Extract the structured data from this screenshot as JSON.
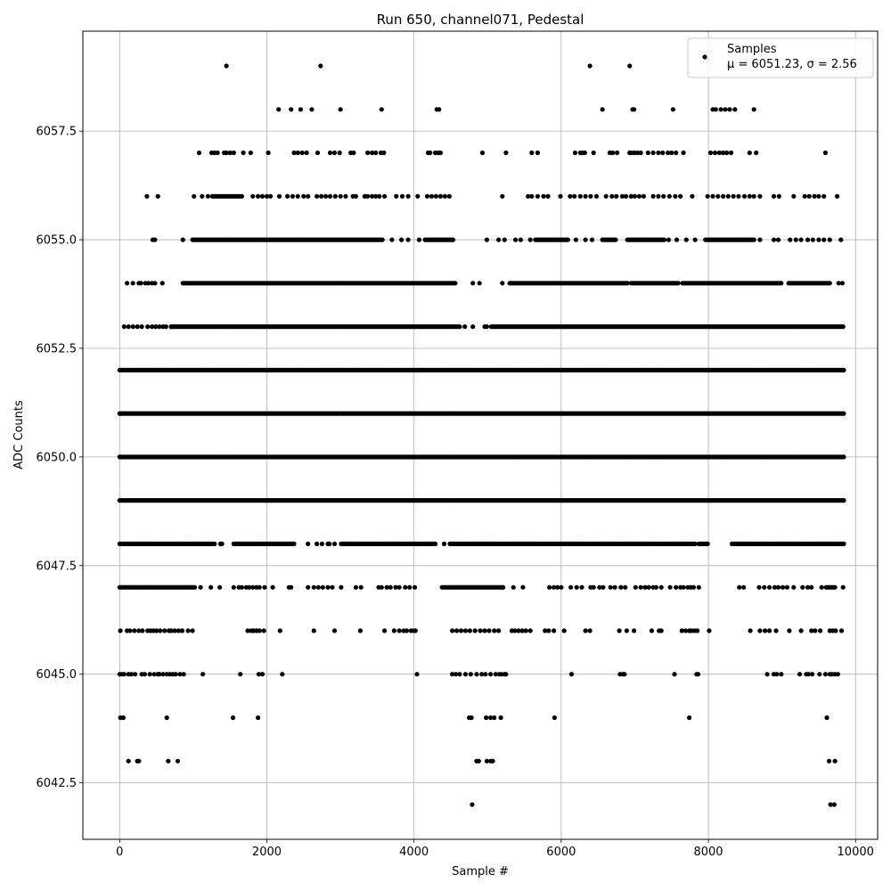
{
  "chart_data": {
    "type": "scatter",
    "title": "Run 650, channel071, Pedestal",
    "xlabel": "Sample #",
    "ylabel": "ADC Counts",
    "xlim": [
      -500,
      10300
    ],
    "ylim": [
      6041.2,
      6059.8
    ],
    "x_ticks": [
      0,
      2000,
      4000,
      6000,
      8000,
      10000
    ],
    "x_tick_labels": [
      "0",
      "2000",
      "4000",
      "6000",
      "8000",
      "10000"
    ],
    "y_ticks": [
      6042.5,
      6045.0,
      6047.5,
      6050.0,
      6052.5,
      6055.0,
      6057.5
    ],
    "y_tick_labels": [
      "6042.5",
      "6045.0",
      "6047.5",
      "6050.0",
      "6052.5",
      "6055.0",
      "6057.5"
    ],
    "grid": true,
    "legend": {
      "placement": "top-right",
      "series_label": "Samples",
      "stats_label": "μ = 6051.23, σ = 2.56"
    },
    "series": [
      {
        "name": "Samples",
        "color": "#000000",
        "level_ranges": [
          {
            "y": 6059,
            "x": [
              1450,
              2730,
              6390,
              6930,
              8280
            ]
          },
          {
            "y": 6058,
            "x": [
              2160,
              2330,
              2460,
              2610,
              3000,
              3560,
              4310,
              4340,
              6560,
              6970,
              6990,
              7520,
              8060,
              8100,
              8170,
              8230,
              8290,
              8360,
              8620
            ]
          },
          {
            "y": 6057,
            "x": [
              1080,
              1250,
              1290,
              1330,
              1420,
              1450,
              1500,
              1550,
              1680,
              1780,
              2020,
              2370,
              2420,
              2480,
              2540,
              2690,
              2860,
              2920,
              2990,
              3140,
              3180,
              3370,
              3430,
              3480,
              3550,
              3590,
              4190,
              4220,
              4290,
              4330,
              4360,
              4930,
              5250,
              5600,
              5680,
              6190,
              6260,
              6290,
              6320,
              6440,
              6660,
              6700,
              6760,
              6930,
              6960,
              7000,
              7040,
              7080,
              7180,
              7250,
              7320,
              7380,
              7450,
              7500,
              7560,
              7660,
              8030,
              8090,
              8150,
              8200,
              8250,
              8310,
              8560,
              8650,
              9590
            ]
          },
          {
            "y": 6056,
            "x": [
              370,
              520,
              1010,
              1120,
              1200
            ],
            "range": [
              1260,
              1660
            ],
            "x2": [
              1810,
              1880,
              1940,
              2000,
              2050,
              2170,
              2280,
              2350,
              2420,
              2500,
              2560,
              2680,
              2740,
              2800,
              2860,
              2930,
              3000,
              3070,
              3170,
              3210,
              3330,
              3370,
              3430,
              3480,
              3530,
              3600,
              3760,
              3840,
              3920,
              4050,
              4180,
              4240,
              4300,
              4360,
              4420,
              4480,
              5200,
              5550,
              5600,
              5680,
              5760,
              5820,
              5990,
              6120,
              6180,
              6260,
              6330,
              6400,
              6480,
              6610,
              6690,
              6750,
              6830,
              6880,
              6950,
              7000,
              7060,
              7120,
              7250,
              7320,
              7390,
              7470,
              7550,
              7620,
              7780,
              7990,
              8060,
              8130,
              8200,
              8270,
              8340,
              8410,
              8490,
              8560,
              8620,
              8700,
              8890,
              8960,
              9160,
              9310,
              9370,
              9440,
              9500,
              9570,
              9750
            ]
          },
          {
            "y": 6055,
            "x": [
              450,
              480,
              860
            ],
            "range": [
              990,
              3570
            ],
            "x2": [
              3700,
              3830,
              3920,
              4070
            ],
            "range2": [
              4150,
              4530
            ],
            "x3": [
              4990,
              5150,
              5230,
              5380,
              5450,
              5580
            ],
            "range3": [
              5650,
              6100
            ],
            "x4": [
              6200,
              6330,
              6420
            ],
            "range4": [
              6560,
              6740
            ],
            "range5": [
              6900,
              7400
            ],
            "x5": [
              7460,
              7570,
              7700,
              7820
            ],
            "range6": [
              7960,
              8630
            ],
            "x6": [
              8700,
              8890,
              8950,
              9110,
              9190,
              9260,
              9350,
              9420,
              9500,
              9570,
              9650,
              9800
            ]
          },
          {
            "y": 6054,
            "x": [
              100,
              180,
              260,
              290,
              350,
              390,
              440,
              480,
              580
            ],
            "range": [
              860,
              4560
            ],
            "x2": [
              4800,
              4890,
              5200
            ],
            "range2": [
              5300,
              6900
            ],
            "range3": [
              6950,
              7600
            ],
            "range4": [
              7650,
              9000
            ],
            "range5": [
              9090,
              9650
            ],
            "x3": [
              9770,
              9820
            ]
          },
          {
            "y": 6053,
            "x": [
              60,
              120,
              180,
              240,
              300,
              380,
              440,
              490,
              540,
              590,
              630,
              700
            ],
            "range": [
              700,
              4630
            ],
            "x2": [
              4690,
              4800,
              4960,
              4990
            ],
            "range2": [
              5050,
              9840
            ]
          },
          {
            "y": 6052,
            "range": [
              0,
              9850
            ]
          },
          {
            "y": 6051,
            "range": [
              0,
              9850
            ]
          },
          {
            "y": 6050,
            "range": [
              0,
              9850
            ]
          },
          {
            "y": 6049,
            "range": [
              0,
              9850
            ]
          },
          {
            "y": 6048,
            "range": [
              0,
              1260
            ],
            "x": [
              1290,
              1370,
              1390
            ],
            "range2": [
              1550,
              2380
            ],
            "x2": [
              2560,
              2680,
              2750,
              2830,
              2850,
              2920
            ],
            "range3": [
              3010,
              4300
            ],
            "x3": [
              4410,
              4490
            ],
            "range4": [
              4490,
              7210
            ],
            "range5": [
              7240,
              7830
            ],
            "range6": [
              7870,
              8000
            ],
            "range7": [
              8320,
              9850
            ]
          },
          {
            "y": 6047,
            "range": [
              0,
              1030
            ],
            "x": [
              1100,
              1240,
              1360,
              1550,
              1620,
              1660,
              1720,
              1760,
              1810,
              1860,
              1900,
              1970,
              2080,
              2300,
              2330,
              2560,
              2640,
              2700,
              2760,
              2830,
              2890,
              3010,
              3210,
              3280,
              3520,
              3560,
              3630,
              3680,
              3750,
              3800,
              3880,
              3940,
              4010
            ],
            "range2": [
              4380,
              5200
            ],
            "x2": [
              5210,
              5350,
              5480,
              5840,
              5900,
              5950,
              6000,
              6130,
              6210,
              6280,
              6400,
              6440,
              6520,
              6570,
              6670,
              6730,
              6810,
              6870,
              7010,
              7080,
              7140,
              7190,
              7250,
              7290,
              7360,
              7480,
              7560,
              7620,
              7660,
              7720,
              7760,
              7800,
              7870,
              8420,
              8480,
              8690,
              8760,
              8830,
              8900,
              8950,
              9010,
              9070,
              9160,
              9280,
              9350,
              9400,
              9540
            ],
            "range3": [
              9600,
              9720
            ],
            "x3": [
              9830
            ]
          },
          {
            "y": 6046,
            "x": [
              10,
              100,
              140,
              200,
              260,
              310,
              380,
              420,
              460,
              500,
              550,
              610,
              670,
              700,
              750,
              800,
              850,
              930,
              990,
              1740,
              1790,
              1820,
              1860,
              1900,
              1960,
              2180,
              2640,
              2920,
              3270,
              3600,
              3730,
              3800,
              3860,
              3900,
              3960,
              4000,
              4020,
              4520,
              4580,
              4640,
              4700,
              4760,
              4830,
              4900,
              4960,
              5020,
              5090,
              5150,
              5330,
              5370,
              5420,
              5470,
              5520,
              5580,
              5780,
              5830,
              5900,
              6040,
              6330,
              6390,
              6790,
              6890,
              6990,
              7230,
              7330,
              7360,
              7640,
              7690,
              7740,
              7770,
              7810,
              7850,
              8010,
              8570,
              8700,
              8770,
              8830,
              8920,
              9100,
              9260,
              9400,
              9450,
              9520,
              9650,
              9690,
              9730,
              9810
            ]
          },
          {
            "y": 6045,
            "x": [
              0,
              30,
              60,
              120,
              160,
              210,
              300,
              340,
              410,
              470,
              520,
              540,
              590,
              640,
              680,
              720,
              760,
              820,
              870,
              1130,
              1640,
              1890,
              1940,
              2210,
              4040,
              4520,
              4570,
              4620,
              4700,
              4770,
              4850,
              4920,
              4970,
              5040,
              5110,
              5160,
              5190,
              5230,
              5250,
              6140,
              6800,
              6840,
              6860,
              7540,
              7840,
              7860,
              8800,
              8890,
              8930,
              8990,
              9240,
              9330,
              9360,
              9410,
              9510,
              9590,
              9650,
              9680,
              9720,
              9760
            ]
          },
          {
            "y": 6044,
            "x": [
              10,
              50,
              640,
              1540,
              1880,
              4750,
              4780,
              4980,
              5040,
              5090,
              5180,
              5910,
              7740,
              9610
            ]
          },
          {
            "y": 6043,
            "x": [
              120,
              240,
              260,
              660,
              790,
              4850,
              4880,
              4990,
              5040,
              5070,
              9640,
              9720
            ]
          },
          {
            "y": 6042,
            "x": [
              4790,
              9660,
              9710
            ]
          }
        ]
      }
    ]
  }
}
